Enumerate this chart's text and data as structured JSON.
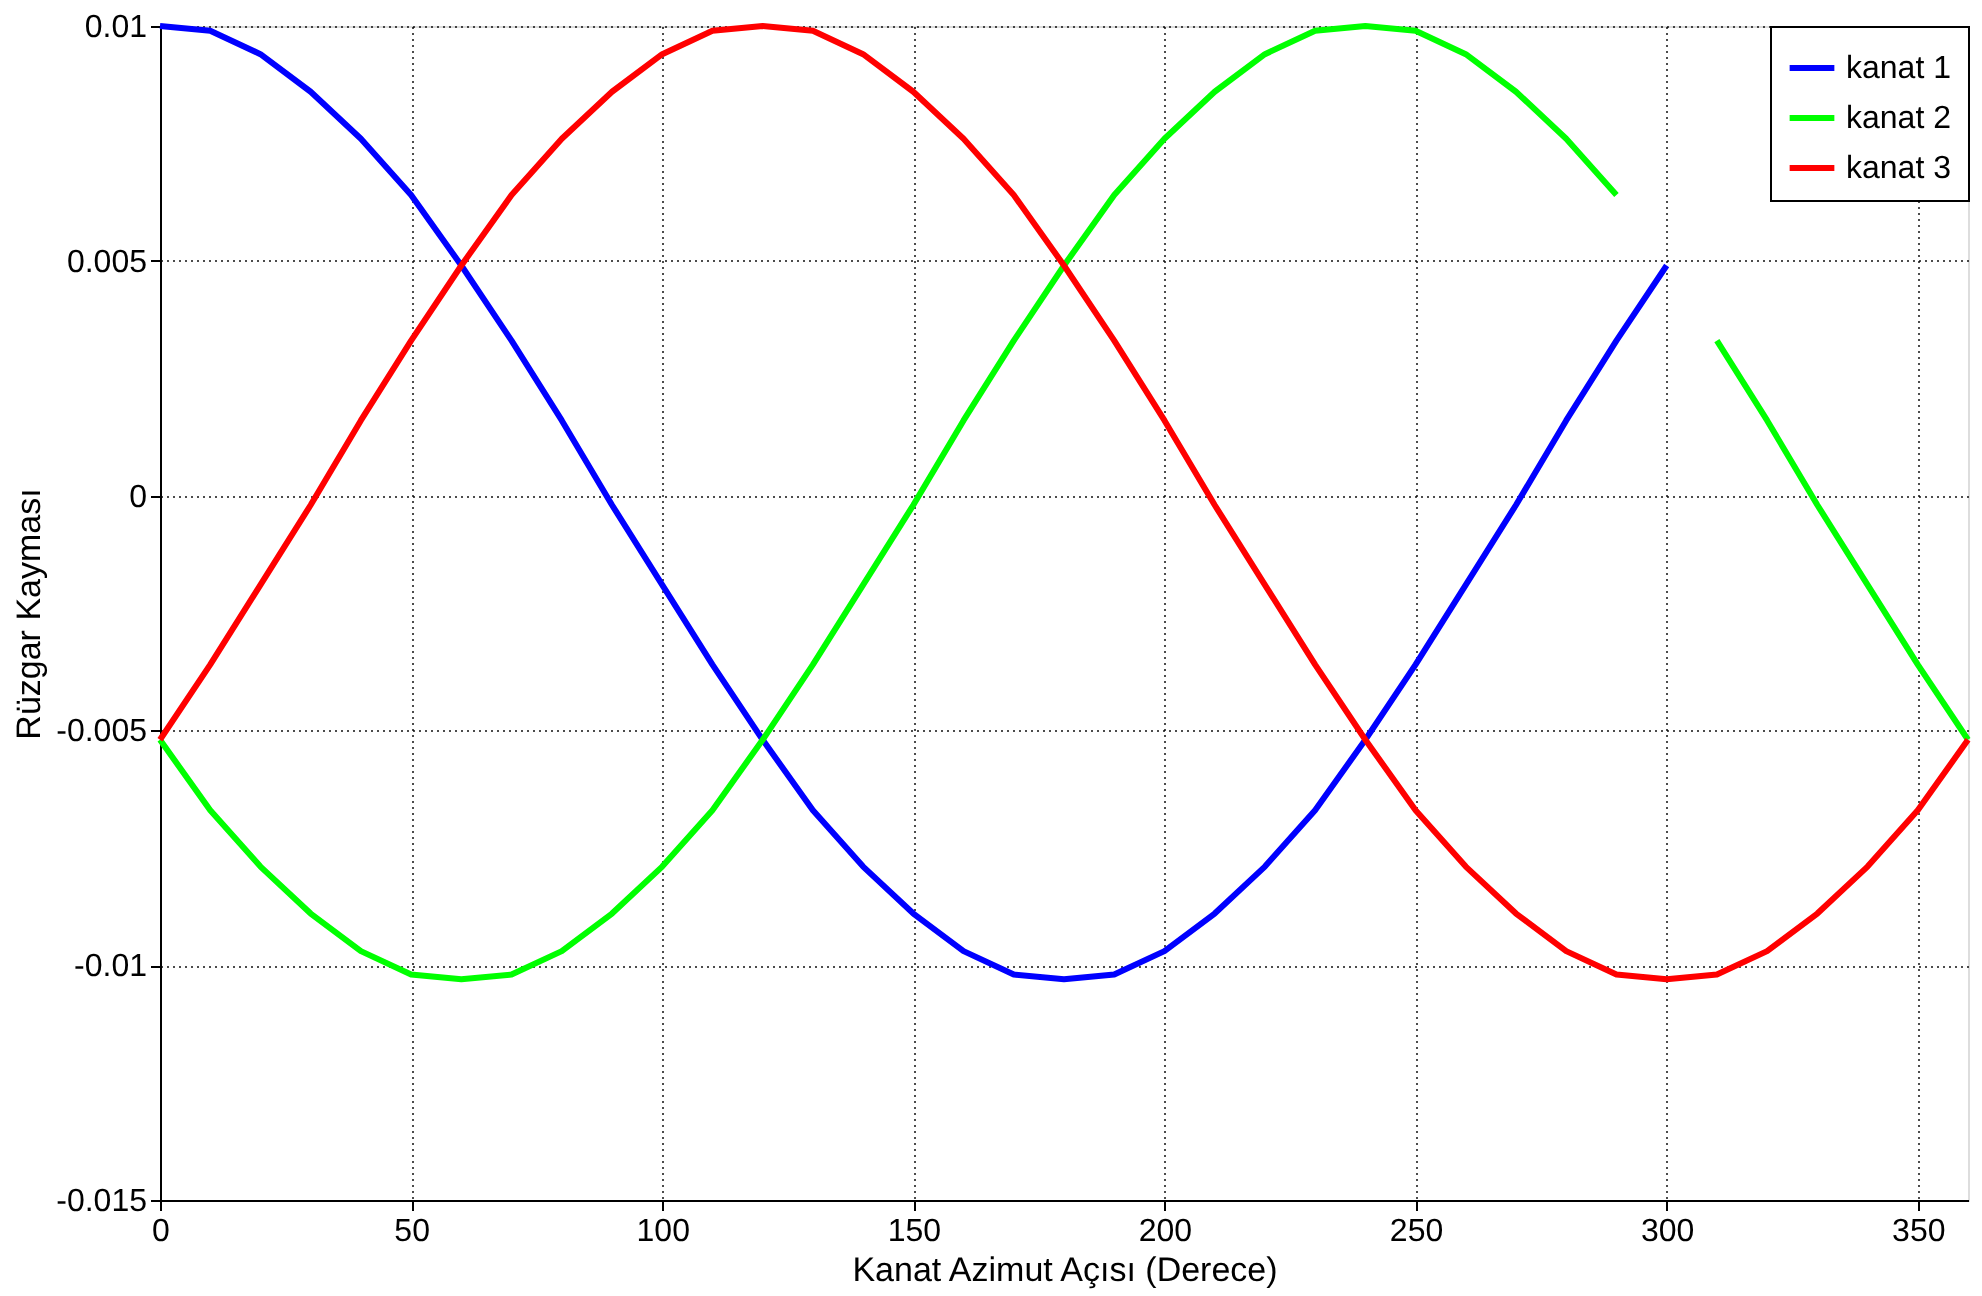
{
  "chart_data": {
    "type": "line",
    "xlabel": "Kanat Azimut Açısı (Derece)",
    "ylabel": "Rüzgar Kayması",
    "x": [
      0,
      10,
      20,
      30,
      40,
      50,
      60,
      70,
      80,
      90,
      100,
      110,
      120,
      130,
      140,
      150,
      160,
      170,
      180,
      190,
      200,
      210,
      220,
      230,
      240,
      250,
      260,
      270,
      280,
      290,
      300,
      310,
      320,
      330,
      340,
      350,
      360
    ],
    "series": [
      {
        "name": "kanat 1",
        "color": "#0000ff",
        "values": [
          0.01,
          0.0099,
          0.0094,
          0.0086,
          0.0076,
          0.0064,
          0.0049,
          0.0033,
          0.0016,
          -0.0002,
          -0.0019,
          -0.0036,
          -0.0052,
          -0.0067,
          -0.0079,
          -0.0089,
          -0.0097,
          -0.0102,
          -0.0103,
          -0.0102,
          -0.0097,
          -0.0089,
          -0.0079,
          -0.0067,
          -0.0052,
          -0.0036,
          -0.0019,
          -0.0002,
          0.0016,
          0.0033,
          0.0049,
          null,
          null,
          null,
          null,
          null,
          null
        ]
      },
      {
        "name": "kanat 2",
        "color": "#00ff00",
        "values": [
          -0.0052,
          -0.0067,
          -0.0079,
          -0.0089,
          -0.0097,
          -0.0102,
          -0.0103,
          -0.0102,
          -0.0097,
          -0.0089,
          -0.0079,
          -0.0067,
          -0.0052,
          -0.0036,
          -0.0019,
          -0.0002,
          0.0016,
          0.0033,
          0.0049,
          0.0064,
          0.0076,
          0.0086,
          0.0094,
          0.0099,
          0.01,
          0.0099,
          0.0094,
          0.0086,
          0.0076,
          0.0064,
          null,
          0.0033,
          0.0016,
          -0.0002,
          -0.0019,
          -0.0036,
          -0.0052
        ]
      },
      {
        "name": "kanat 3",
        "color": "#ff0000",
        "values": [
          -0.0052,
          -0.0036,
          -0.0019,
          -0.0002,
          0.0016,
          0.0033,
          0.0049,
          0.0064,
          0.0076,
          0.0086,
          0.0094,
          0.0099,
          0.01,
          0.0099,
          0.0094,
          0.0086,
          0.0076,
          0.0064,
          0.0049,
          0.0033,
          0.0016,
          -0.0002,
          -0.0019,
          -0.0036,
          -0.0052,
          -0.0067,
          -0.0079,
          -0.0089,
          -0.0097,
          -0.0102,
          -0.0103,
          -0.0102,
          -0.0097,
          -0.0089,
          -0.0079,
          -0.0067,
          -0.0052
        ]
      }
    ],
    "xlim": [
      0,
      360
    ],
    "xticks": [
      0,
      50,
      100,
      150,
      200,
      250,
      300,
      350
    ],
    "ylim": [
      -0.015,
      0.01
    ],
    "yticks": [
      -0.015,
      -0.01,
      -0.005,
      0,
      0.005,
      0.01
    ],
    "grid": true,
    "legend": "top right",
    "line_style": "solid",
    "marker": "none"
  }
}
